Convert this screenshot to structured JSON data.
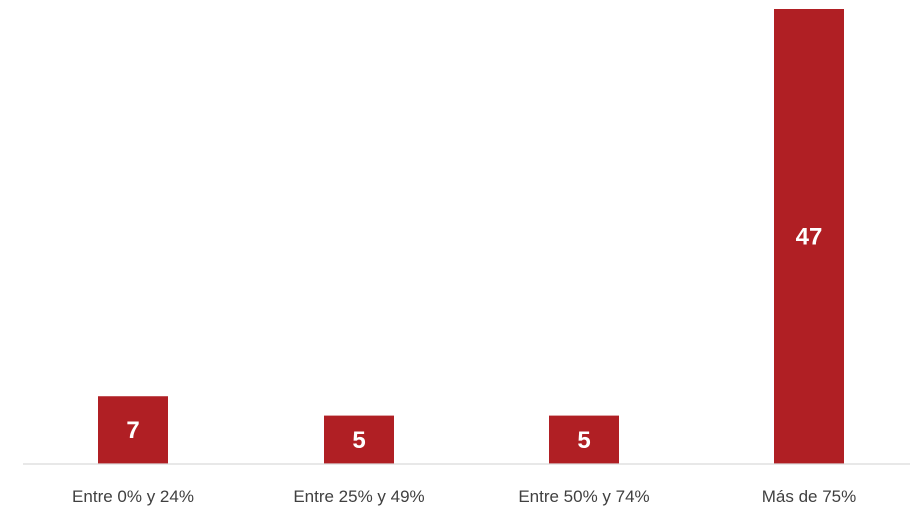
{
  "chart_data": {
    "type": "bar",
    "categories": [
      "Entre 0% y 24%",
      "Entre 25% y 49%",
      "Entre 50% y 74%",
      "Más de 75%"
    ],
    "values": [
      7,
      5,
      5,
      47
    ],
    "data_labels": [
      "7",
      "5",
      "5",
      "47"
    ],
    "title": "",
    "xlabel": "",
    "ylabel": "",
    "ylim": [
      0,
      47
    ],
    "grid": false,
    "legend": "none",
    "bar_color": "#B01F24"
  }
}
